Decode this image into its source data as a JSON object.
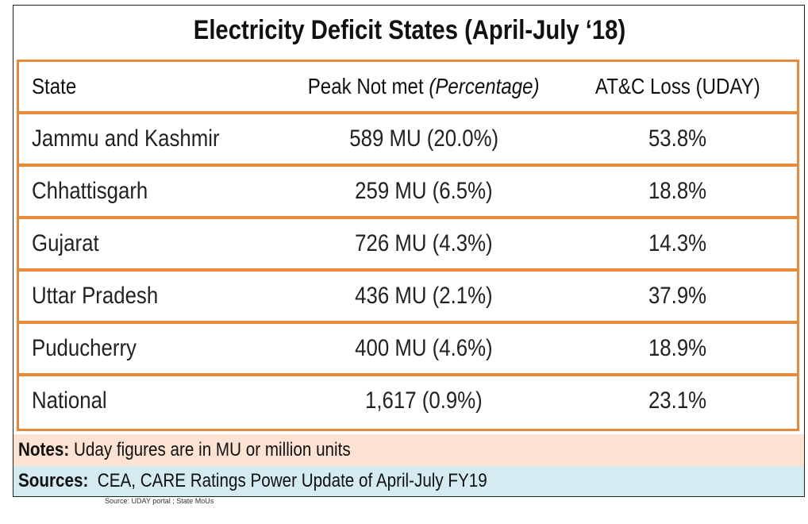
{
  "title": "Electricity Deficit States (April-July ‘18)",
  "table": {
    "headers": {
      "state": "State",
      "peak_main": "Peak Not met",
      "peak_unit": "(Percentage)",
      "atc": "AT&C Loss (UDAY)"
    },
    "rows": [
      {
        "state": "Jammu and Kashmir",
        "peak": "589 MU (20.0%)",
        "atc": "53.8%"
      },
      {
        "state": "Chhattisgarh",
        "peak": "259 MU (6.5%)",
        "atc": "18.8%"
      },
      {
        "state": "Gujarat",
        "peak": "726 MU (4.3%)",
        "atc": "14.3%"
      },
      {
        "state": "Uttar Pradesh",
        "peak": "436 MU (2.1%)",
        "atc": "37.9%"
      },
      {
        "state": "Puducherry",
        "peak": "400 MU (4.6%)",
        "atc": "18.9%"
      },
      {
        "state": "National",
        "peak": "1,617 (0.9%)",
        "atc": "23.1%"
      }
    ]
  },
  "notes": {
    "label": "Notes:",
    "text": " Uday figures are in MU or million units"
  },
  "sources": {
    "label": "Sources:",
    "text": "  CEA, CARE Ratings Power Update of April-July FY19"
  },
  "underlying_source": "Source: UDAY portal ; State MoUs",
  "colors": {
    "border": "#e98a3a",
    "notes_bg": "#fbe2d2",
    "sources_bg": "#d5ebf2"
  }
}
